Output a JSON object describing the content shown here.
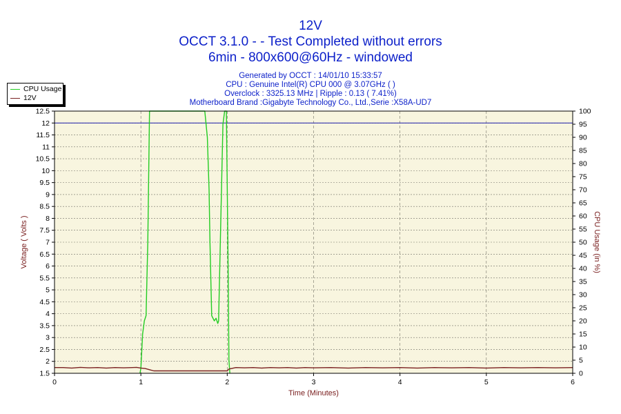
{
  "title": {
    "line1": "12V",
    "line2": "OCCT 3.1.0 -  - Test Completed without errors",
    "line3": "6min - 800x600@60Hz - windowed"
  },
  "info": {
    "generated": "Generated by OCCT : 14/01/10 15:33:57",
    "cpu": "CPU : Genuine Intel(R) CPU 000 @ 3.07GHz (  )",
    "overclock": "Overclock : 3325.13 MHz | Ripple : 0.13 ( 7.41%)",
    "motherboard": "Motherboard Brand :Gigabyte Technology Co., Ltd.,Serie :X58A-UD7"
  },
  "colors": {
    "plot_bg": "#f8f5df",
    "grid": "#808080",
    "voltage_line": "#7a2020",
    "cpu_line": "#22cc22",
    "ref_line": "#1a1aa8",
    "axis_label": "#7a2020"
  },
  "chart_data": {
    "type": "line",
    "xlabel": "Time (Minutes)",
    "ylabel_left": "Voltage ( Volts )",
    "ylabel_right": "CPU Usage (in %)",
    "x_range": [
      0,
      6
    ],
    "x_ticks": [
      "0",
      "1",
      "2",
      "3",
      "4",
      "5",
      "6"
    ],
    "y_left_range": [
      1.5,
      12.5
    ],
    "y_left_ticks": [
      "1.5",
      "2",
      "2.5",
      "3",
      "3.5",
      "4",
      "4.5",
      "5",
      "5.5",
      "6",
      "6.5",
      "7",
      "7.5",
      "8",
      "8.5",
      "9",
      "9.5",
      "10",
      "10.5",
      "11",
      "11.5",
      "12",
      "12.5"
    ],
    "y_right_range": [
      0,
      100
    ],
    "y_right_ticks": [
      "0",
      "5",
      "10",
      "15",
      "20",
      "25",
      "30",
      "35",
      "40",
      "45",
      "50",
      "55",
      "60",
      "65",
      "70",
      "75",
      "80",
      "85",
      "90",
      "95",
      "100"
    ],
    "reference_line": 12,
    "legend": {
      "position": "top-left",
      "entries": [
        "CPU Usage",
        "12V"
      ]
    },
    "series": [
      {
        "name": "CPU Usage",
        "axis": "right",
        "x": [
          0.99,
          1.0,
          1.02,
          1.04,
          1.06,
          1.08,
          1.1,
          1.12,
          1.14,
          1.3,
          1.5,
          1.7,
          1.74,
          1.77,
          1.79,
          1.8,
          1.82,
          1.85,
          1.87,
          1.89,
          1.9,
          1.92,
          1.95,
          1.97,
          1.99,
          2.0,
          2.01,
          2.02,
          2.03
        ],
        "values": [
          0,
          2,
          15,
          20,
          22,
          50,
          100,
          100,
          100,
          100,
          100,
          100,
          100,
          90,
          70,
          50,
          22,
          20,
          21,
          19,
          20,
          50,
          95,
          100,
          100,
          72,
          40,
          5,
          0
        ]
      },
      {
        "name": "12V",
        "axis": "left",
        "x": [
          0,
          0.1,
          0.2,
          0.3,
          0.4,
          0.5,
          0.6,
          0.7,
          0.8,
          0.9,
          0.95,
          1.0,
          1.05,
          1.1,
          1.15,
          1.2,
          1.3,
          1.4,
          1.5,
          1.6,
          1.7,
          1.8,
          1.9,
          2.0,
          2.02,
          2.1,
          2.2,
          2.3,
          2.4,
          2.5,
          2.6,
          2.7,
          2.8,
          2.9,
          3.0,
          3.2,
          3.4,
          3.6,
          3.8,
          4.0,
          4.2,
          4.4,
          4.6,
          4.8,
          5.0,
          5.2,
          5.4,
          5.6,
          5.8,
          6.0
        ],
        "values": [
          1.74,
          1.74,
          1.72,
          1.75,
          1.73,
          1.74,
          1.72,
          1.74,
          1.73,
          1.74,
          1.75,
          1.72,
          1.7,
          1.65,
          1.6,
          1.6,
          1.6,
          1.6,
          1.6,
          1.6,
          1.6,
          1.6,
          1.6,
          1.6,
          1.68,
          1.74,
          1.73,
          1.74,
          1.72,
          1.74,
          1.73,
          1.74,
          1.72,
          1.74,
          1.73,
          1.74,
          1.72,
          1.74,
          1.73,
          1.74,
          1.72,
          1.74,
          1.73,
          1.74,
          1.72,
          1.74,
          1.73,
          1.74,
          1.73,
          1.74
        ]
      }
    ]
  }
}
